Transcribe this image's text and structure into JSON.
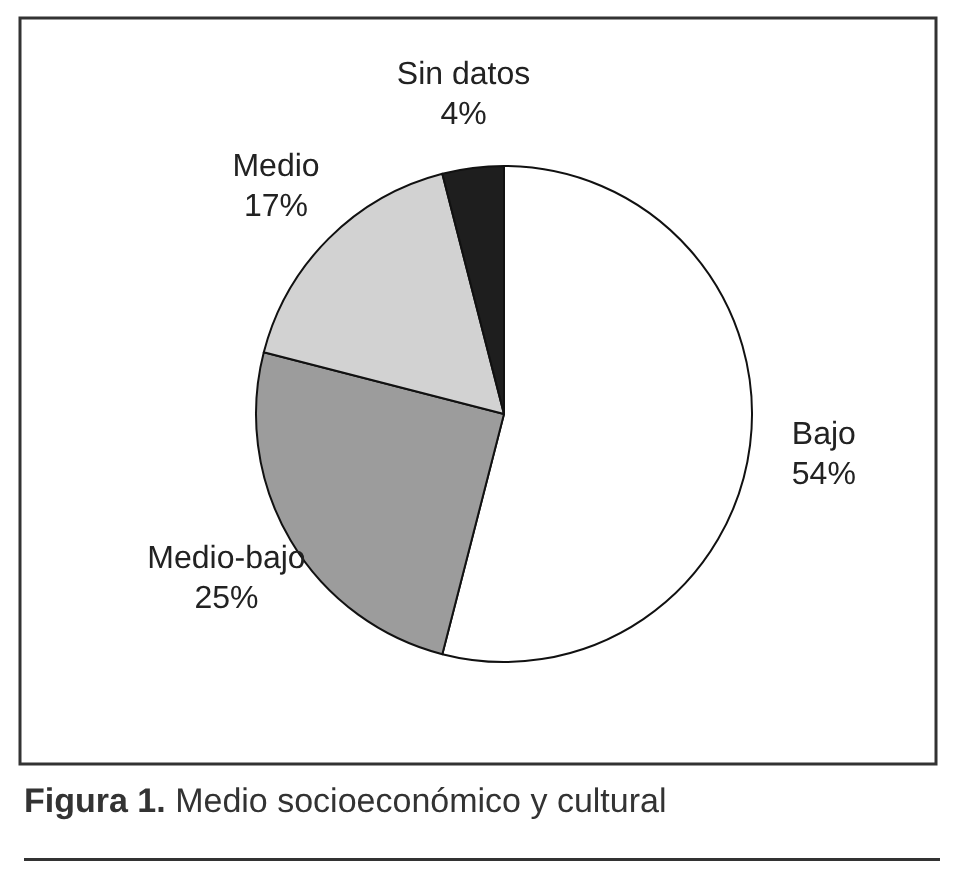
{
  "chart_data": {
    "type": "pie",
    "title": "Figura 1. Medio socioeconómico y cultural",
    "categories": [
      "Bajo",
      "Medio-bajo",
      "Medio",
      "Sin datos"
    ],
    "values": [
      54,
      25,
      17,
      4
    ],
    "value_labels": [
      "54%",
      "25%",
      "17%",
      "4%"
    ],
    "colors": [
      "#ffffff",
      "#9c9c9c",
      "#d2d2d2",
      "#1e1e1e"
    ]
  }
}
